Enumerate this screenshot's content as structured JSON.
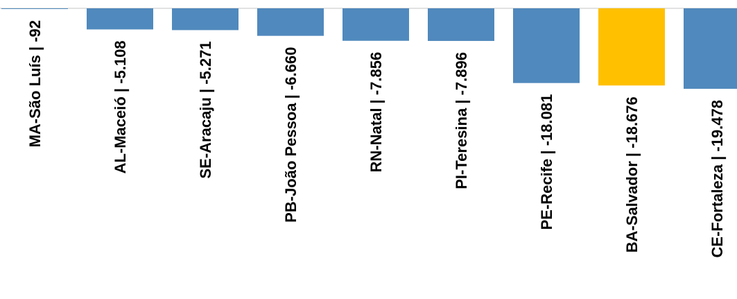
{
  "chart_data": {
    "type": "bar",
    "title": "",
    "xlabel": "",
    "ylabel": "",
    "categories": [
      "MA-São Luís | -92",
      "AL-Maceió | -5.108",
      "SE-Aracaju | -5.271",
      "PB-João Pessoa | -6.660",
      "RN-Natal | -7.856",
      "PI-Teresina | -7.896",
      "PE-Recife | -18.081",
      "BA-Salvador | -18.676",
      "CE-Fortaleza | -19.478"
    ],
    "values": [
      -92,
      -5108,
      -5271,
      -6660,
      -7856,
      -7896,
      -18081,
      -18676,
      -19478
    ],
    "ylim": [
      -70000,
      0
    ],
    "grid": false,
    "legend": "none",
    "colors": {
      "default": "#5089bd",
      "highlight": "#ffc000",
      "axis": "#d9d9d9"
    },
    "highlight_index": 7
  }
}
